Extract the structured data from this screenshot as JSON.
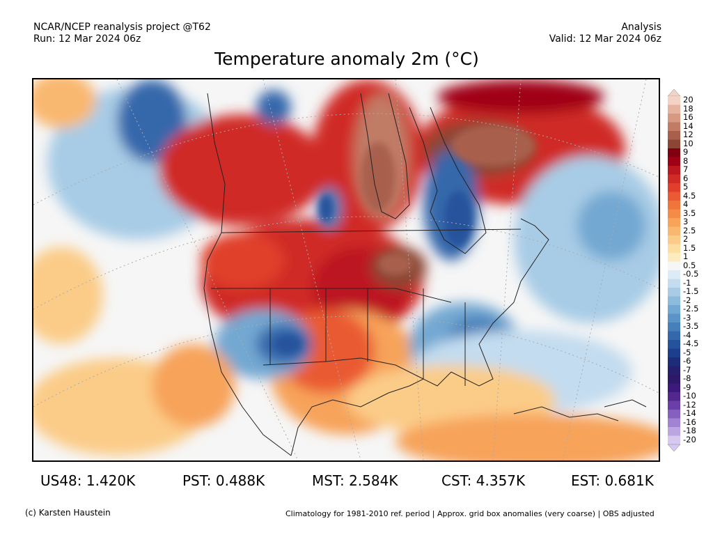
{
  "header": {
    "left_line1": "NCAR/NCEP reanalysis project @T62",
    "left_line2": "Run: 12 Mar 2024 06z",
    "right_line1": "Analysis",
    "right_line2": "Valid: 12 Mar 2024 06z"
  },
  "title": "Temperature anomaly 2m (°C)",
  "colorbar": {
    "labels": [
      "20",
      "18",
      "16",
      "14",
      "12",
      "10",
      "9",
      "8",
      "7",
      "6",
      "5",
      "4.5",
      "4",
      "3.5",
      "3",
      "2.5",
      "2",
      "1.5",
      "1",
      "0.5",
      "-0.5",
      "-1",
      "-1.5",
      "-2",
      "-2.5",
      "-3",
      "-3.5",
      "-4",
      "-4.5",
      "-5",
      "-6",
      "-7",
      "-8",
      "-9",
      "-10",
      "-12",
      "-14",
      "-16",
      "-18",
      "-20"
    ],
    "colors": [
      "#f3d3c5",
      "#e6b39f",
      "#d69982",
      "#c17c66",
      "#a8604d",
      "#8c4636",
      "#800010",
      "#a00015",
      "#bc1820",
      "#d02b25",
      "#e0402b",
      "#ea5a33",
      "#f0743c",
      "#f48c48",
      "#f7a35a",
      "#f9b86f",
      "#fbcc88",
      "#fcdda2",
      "#fdebc0",
      "#f6f6f6",
      "#dcebf6",
      "#c3dcef",
      "#a8cce6",
      "#8dbbdc",
      "#73a8d2",
      "#5b94c7",
      "#467fba",
      "#3568ab",
      "#26529c",
      "#1c3e8c",
      "#1e2d7a",
      "#251f6e",
      "#2e1868",
      "#3c197a",
      "#52288e",
      "#6a40a8",
      "#8560be",
      "#a083d2",
      "#bca6e2",
      "#d6c8ef"
    ]
  },
  "stats": [
    {
      "label": "US48: 1.420K"
    },
    {
      "label": "PST: 0.488K"
    },
    {
      "label": "MST: 2.584K"
    },
    {
      "label": "CST: 4.357K"
    },
    {
      "label": "EST: 0.681K"
    }
  ],
  "footer": {
    "credit": "(c) Karsten Haustein",
    "note": "Climatology for 1981-2010 ref. period | Approx. grid box anomalies (very coarse) | OBS adjusted"
  }
}
